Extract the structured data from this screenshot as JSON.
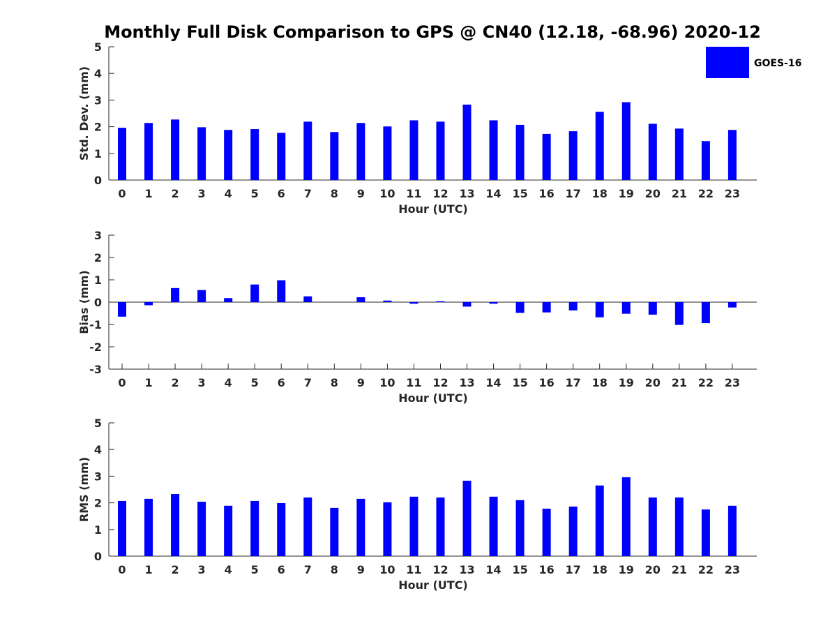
{
  "chart_data": {
    "title": "Monthly Full Disk Comparison to GPS @ CN40 (12.18, -68.96) 2020-12",
    "legend": {
      "label": "GOES-16",
      "color": "#0000ff",
      "placement": "top-right"
    },
    "panels": [
      {
        "type": "bar",
        "xlabel": "Hour (UTC)",
        "ylabel": "Std. Dev. (mm)",
        "ylim": [
          0,
          5
        ],
        "yticks": [
          "0",
          "1",
          "2",
          "3",
          "4",
          "5"
        ],
        "categories": [
          "0",
          "1",
          "2",
          "3",
          "4",
          "5",
          "6",
          "7",
          "8",
          "9",
          "10",
          "11",
          "12",
          "13",
          "14",
          "15",
          "16",
          "17",
          "18",
          "19",
          "20",
          "21",
          "22",
          "23"
        ],
        "series": [
          {
            "name": "GOES-16",
            "values": [
              1.96,
              2.14,
              2.27,
              1.98,
              1.88,
              1.91,
              1.77,
              2.19,
              1.8,
              2.14,
              2.01,
              2.24,
              2.19,
              2.83,
              2.24,
              2.07,
              1.73,
              1.83,
              2.56,
              2.92,
              2.11,
              1.93,
              1.46,
              1.88
            ]
          }
        ]
      },
      {
        "type": "bar",
        "xlabel": "Hour (UTC)",
        "ylabel": "Bias (mm)",
        "ylim": [
          -3,
          3
        ],
        "yticks": [
          "-3",
          "-2",
          "-1",
          "0",
          "1",
          "2",
          "3"
        ],
        "categories": [
          "0",
          "1",
          "2",
          "3",
          "4",
          "5",
          "6",
          "7",
          "8",
          "9",
          "10",
          "11",
          "12",
          "13",
          "14",
          "15",
          "16",
          "17",
          "18",
          "19",
          "20",
          "21",
          "22",
          "23"
        ],
        "series": [
          {
            "name": "GOES-16",
            "values": [
              -0.65,
              -0.14,
              0.63,
              0.54,
              0.18,
              0.79,
              0.98,
              0.26,
              0.0,
              0.22,
              0.07,
              -0.07,
              0.04,
              -0.2,
              -0.07,
              -0.48,
              -0.46,
              -0.37,
              -0.68,
              -0.52,
              -0.56,
              -1.02,
              -0.94,
              -0.24
            ]
          }
        ]
      },
      {
        "type": "bar",
        "xlabel": "Hour (UTC)",
        "ylabel": "RMS (mm)",
        "ylim": [
          0,
          5
        ],
        "yticks": [
          "0",
          "1",
          "2",
          "3",
          "4",
          "5"
        ],
        "categories": [
          "0",
          "1",
          "2",
          "3",
          "4",
          "5",
          "6",
          "7",
          "8",
          "9",
          "10",
          "11",
          "12",
          "13",
          "14",
          "15",
          "16",
          "17",
          "18",
          "19",
          "20",
          "21",
          "22",
          "23"
        ],
        "series": [
          {
            "name": "GOES-16",
            "values": [
              2.07,
              2.15,
              2.33,
              2.04,
              1.89,
              2.07,
              1.99,
              2.2,
              1.81,
              2.15,
              2.02,
              2.23,
              2.2,
              2.83,
              2.23,
              2.1,
              1.78,
              1.86,
              2.65,
              2.96,
              2.2,
              2.2,
              1.75,
              1.89
            ]
          }
        ]
      }
    ]
  }
}
